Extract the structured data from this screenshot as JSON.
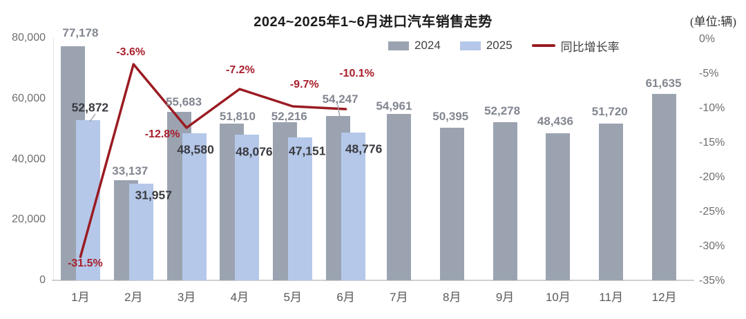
{
  "chart": {
    "title": "2024~2025年1~6月进口汽车销售走势",
    "unit_label": "(单位:辆)",
    "legend": [
      {
        "label": "2024",
        "swatch": "square",
        "color": "#9ba3b1"
      },
      {
        "label": "2025",
        "swatch": "square",
        "color": "#b5c8e9"
      },
      {
        "label": "同比增长率",
        "swatch": "line",
        "color": "#9a1b22"
      }
    ]
  },
  "chart_data": {
    "type": "bar",
    "title": "2024~2025年1~6月进口汽车销售走势",
    "unit": "辆",
    "categories": [
      "1月",
      "2月",
      "3月",
      "4月",
      "5月",
      "6月",
      "7月",
      "8月",
      "9月",
      "10月",
      "11月",
      "12月"
    ],
    "series": [
      {
        "name": "2024",
        "type": "bar",
        "color": "#9ba3b1",
        "values": [
          77178,
          33137,
          55683,
          51810,
          52216,
          54247,
          54961,
          50395,
          52278,
          48436,
          51720,
          61635
        ]
      },
      {
        "name": "2025",
        "type": "bar",
        "color": "#b5c8e9",
        "values": [
          52872,
          31957,
          48580,
          48076,
          47151,
          48776,
          null,
          null,
          null,
          null,
          null,
          null
        ]
      },
      {
        "name": "同比增长率",
        "type": "line",
        "color": "#9a1b22",
        "value_suffix": "%",
        "values": [
          -31.5,
          -3.6,
          -12.8,
          -7.2,
          -9.7,
          -10.1,
          null,
          null,
          null,
          null,
          null,
          null
        ]
      }
    ],
    "left_axis": {
      "min": 0,
      "max": 80000,
      "ticks": [
        80000,
        60000,
        40000,
        20000,
        0
      ]
    },
    "right_axis": {
      "min": -35,
      "max": 0,
      "suffix": "%",
      "ticks": [
        0,
        -5,
        -10,
        -15,
        -20,
        -25,
        -30,
        -35
      ]
    },
    "grid": false,
    "legend_position": "top-center"
  }
}
